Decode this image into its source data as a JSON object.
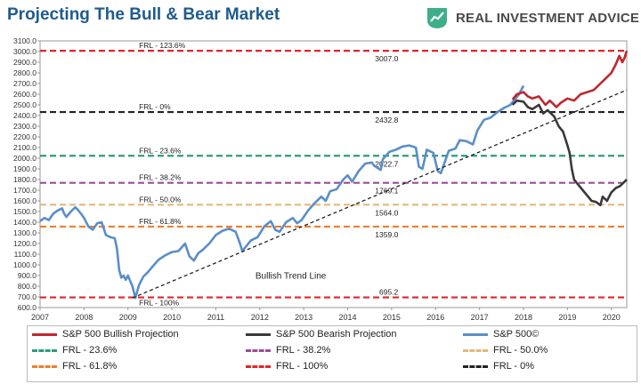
{
  "title": "Projecting The Bull & Bear Market",
  "brand": {
    "name": "REAL INVESTMENT ADVICE",
    "logo_icon": "bull-chart-logo-icon",
    "logo_color": "#3fae8c"
  },
  "chart_data": {
    "type": "line",
    "xlim": [
      2007.0,
      2020.35
    ],
    "ylim": [
      600,
      3100
    ],
    "x_ticks": [
      2007,
      2008,
      2009,
      2010,
      2011,
      2012,
      2013,
      2014,
      2015,
      2016,
      2017,
      2018,
      2019,
      2020
    ],
    "y_ticks": [
      "3100.0",
      "3000.0",
      "2900.0",
      "2800.0",
      "2700.0",
      "2600.0",
      "2500.0",
      "2400.0",
      "2300.0",
      "2200.0",
      "2100.0",
      "2000.0",
      "1900.0",
      "1800.0",
      "1700.0",
      "1600.0",
      "1500.0",
      "1400.0",
      "1300.0",
      "1200.0",
      "1100.0",
      "1000.0",
      "900.0",
      "800.0",
      "700.0",
      "600.0"
    ],
    "series": [
      {
        "name": "S&P 500©",
        "color": "#5b8ec9",
        "style": "solid",
        "points": [
          [
            2007.0,
            1410
          ],
          [
            2007.1,
            1440
          ],
          [
            2007.2,
            1420
          ],
          [
            2007.3,
            1480
          ],
          [
            2007.4,
            1510
          ],
          [
            2007.5,
            1530
          ],
          [
            2007.55,
            1480
          ],
          [
            2007.6,
            1450
          ],
          [
            2007.7,
            1500
          ],
          [
            2007.8,
            1540
          ],
          [
            2007.85,
            1520
          ],
          [
            2007.95,
            1470
          ],
          [
            2008.0,
            1440
          ],
          [
            2008.1,
            1360
          ],
          [
            2008.2,
            1330
          ],
          [
            2008.3,
            1390
          ],
          [
            2008.4,
            1400
          ],
          [
            2008.5,
            1280
          ],
          [
            2008.6,
            1260
          ],
          [
            2008.7,
            1250
          ],
          [
            2008.75,
            1150
          ],
          [
            2008.8,
            950
          ],
          [
            2008.85,
            880
          ],
          [
            2008.9,
            900
          ],
          [
            2008.95,
            860
          ],
          [
            2009.0,
            900
          ],
          [
            2009.1,
            800
          ],
          [
            2009.17,
            690
          ],
          [
            2009.25,
            810
          ],
          [
            2009.35,
            890
          ],
          [
            2009.45,
            930
          ],
          [
            2009.55,
            980
          ],
          [
            2009.7,
            1050
          ],
          [
            2009.85,
            1090
          ],
          [
            2010.0,
            1120
          ],
          [
            2010.15,
            1130
          ],
          [
            2010.3,
            1200
          ],
          [
            2010.4,
            1080
          ],
          [
            2010.5,
            1040
          ],
          [
            2010.6,
            1110
          ],
          [
            2010.7,
            1140
          ],
          [
            2010.85,
            1200
          ],
          [
            2011.0,
            1280
          ],
          [
            2011.15,
            1320
          ],
          [
            2011.3,
            1340
          ],
          [
            2011.45,
            1310
          ],
          [
            2011.55,
            1200
          ],
          [
            2011.6,
            1130
          ],
          [
            2011.7,
            1180
          ],
          [
            2011.8,
            1230
          ],
          [
            2011.95,
            1260
          ],
          [
            2012.1,
            1360
          ],
          [
            2012.25,
            1410
          ],
          [
            2012.35,
            1330
          ],
          [
            2012.45,
            1310
          ],
          [
            2012.6,
            1400
          ],
          [
            2012.75,
            1440
          ],
          [
            2012.85,
            1390
          ],
          [
            2012.95,
            1420
          ],
          [
            2013.1,
            1510
          ],
          [
            2013.25,
            1580
          ],
          [
            2013.4,
            1640
          ],
          [
            2013.5,
            1600
          ],
          [
            2013.6,
            1690
          ],
          [
            2013.75,
            1710
          ],
          [
            2013.9,
            1800
          ],
          [
            2014.0,
            1840
          ],
          [
            2014.1,
            1780
          ],
          [
            2014.25,
            1880
          ],
          [
            2014.4,
            1950
          ],
          [
            2014.55,
            1960
          ],
          [
            2014.6,
            1930
          ],
          [
            2014.75,
            1890
          ],
          [
            2014.8,
            1990
          ],
          [
            2014.95,
            2060
          ],
          [
            2015.1,
            2080
          ],
          [
            2015.25,
            2110
          ],
          [
            2015.4,
            2120
          ],
          [
            2015.55,
            2100
          ],
          [
            2015.62,
            1920
          ],
          [
            2015.7,
            1900
          ],
          [
            2015.8,
            2080
          ],
          [
            2015.95,
            2050
          ],
          [
            2016.05,
            1880
          ],
          [
            2016.12,
            1860
          ],
          [
            2016.3,
            2070
          ],
          [
            2016.45,
            2090
          ],
          [
            2016.55,
            2170
          ],
          [
            2016.7,
            2160
          ],
          [
            2016.85,
            2130
          ],
          [
            2016.95,
            2260
          ],
          [
            2017.1,
            2360
          ],
          [
            2017.25,
            2380
          ],
          [
            2017.4,
            2430
          ],
          [
            2017.55,
            2470
          ],
          [
            2017.7,
            2500
          ],
          [
            2017.8,
            2550
          ],
          [
            2017.9,
            2600
          ],
          [
            2018.0,
            2680
          ]
        ]
      },
      {
        "name": "S&P 500 Bullish Projection",
        "color": "#c0272d",
        "style": "solid",
        "points": [
          [
            2017.75,
            2550
          ],
          [
            2017.85,
            2600
          ],
          [
            2018.0,
            2620
          ],
          [
            2018.1,
            2580
          ],
          [
            2018.2,
            2560
          ],
          [
            2018.35,
            2580
          ],
          [
            2018.5,
            2500
          ],
          [
            2018.6,
            2540
          ],
          [
            2018.75,
            2480
          ],
          [
            2018.85,
            2520
          ],
          [
            2019.0,
            2560
          ],
          [
            2019.15,
            2540
          ],
          [
            2019.3,
            2600
          ],
          [
            2019.45,
            2620
          ],
          [
            2019.6,
            2640
          ],
          [
            2019.75,
            2700
          ],
          [
            2019.9,
            2760
          ],
          [
            2020.0,
            2800
          ],
          [
            2020.1,
            2880
          ],
          [
            2020.18,
            2960
          ],
          [
            2020.25,
            2900
          ],
          [
            2020.3,
            2940
          ],
          [
            2020.35,
            3007
          ]
        ]
      },
      {
        "name": "S&P 500 Bearish Projection",
        "color": "#3a3a3a",
        "style": "solid",
        "points": [
          [
            2017.75,
            2500
          ],
          [
            2017.85,
            2540
          ],
          [
            2018.0,
            2530
          ],
          [
            2018.1,
            2480
          ],
          [
            2018.2,
            2460
          ],
          [
            2018.35,
            2500
          ],
          [
            2018.45,
            2420
          ],
          [
            2018.55,
            2450
          ],
          [
            2018.7,
            2390
          ],
          [
            2018.8,
            2300
          ],
          [
            2018.9,
            2250
          ],
          [
            2019.0,
            2120
          ],
          [
            2019.05,
            2050
          ],
          [
            2019.1,
            1900
          ],
          [
            2019.15,
            1800
          ],
          [
            2019.25,
            1750
          ],
          [
            2019.35,
            1700
          ],
          [
            2019.45,
            1650
          ],
          [
            2019.55,
            1600
          ],
          [
            2019.65,
            1590
          ],
          [
            2019.75,
            1560
          ],
          [
            2019.8,
            1640
          ],
          [
            2019.9,
            1600
          ],
          [
            2020.0,
            1680
          ],
          [
            2020.1,
            1720
          ],
          [
            2020.2,
            1740
          ],
          [
            2020.3,
            1780
          ],
          [
            2020.35,
            1800
          ]
        ]
      },
      {
        "name": "Bullish Trend Line",
        "color": "#222222",
        "style": "dashed",
        "points": [
          [
            2009.1,
            690
          ],
          [
            2020.35,
            2640
          ]
        ]
      }
    ],
    "levels": [
      {
        "name": "FRL - 123.6%",
        "value": 3007.0,
        "value_label": "3007.0",
        "color": "#e0262b"
      },
      {
        "name": "FRL - 0%",
        "value": 2432.8,
        "value_label": "2432.8",
        "color": "#222222"
      },
      {
        "name": "FRL - 23.6%",
        "value": 2022.7,
        "value_label": "2022.7",
        "color": "#2e9b7e"
      },
      {
        "name": "FRL - 38.2%",
        "value": 1769.1,
        "value_label": "1769.1",
        "color": "#9c4b9a"
      },
      {
        "name": "FRL - 50.0%",
        "value": 1564.0,
        "value_label": "1564.0",
        "color": "#e4b77c"
      },
      {
        "name": "FRL - 61.8%",
        "value": 1359.0,
        "value_label": "1359.0",
        "color": "#ee7f2d"
      },
      {
        "name": "FRL - 100%",
        "value": 695.2,
        "value_label": "695.2",
        "color": "#e0262b"
      }
    ],
    "annotations": [
      {
        "text": "Bullish Trend Line",
        "x": 2011.9,
        "y": 870
      }
    ],
    "legend": {
      "placement": "bottom",
      "entries": [
        {
          "label": "S&P 500 Bullish Projection",
          "color": "#c0272d",
          "style": "solid"
        },
        {
          "label": "S&P 500 Bearish Projection",
          "color": "#3a3a3a",
          "style": "solid"
        },
        {
          "label": "S&P 500©",
          "color": "#5b8ec9",
          "style": "solid"
        },
        {
          "label": "FRL - 23.6%",
          "color": "#2e9b7e",
          "style": "dashed"
        },
        {
          "label": "FRL - 38.2%",
          "color": "#9c4b9a",
          "style": "dashed"
        },
        {
          "label": "FRL - 50.0%",
          "color": "#e4b77c",
          "style": "dashed"
        },
        {
          "label": "FRL - 61.8%",
          "color": "#ee7f2d",
          "style": "dashed"
        },
        {
          "label": "FRL - 100%",
          "color": "#e0262b",
          "style": "dashed"
        },
        {
          "label": "FRL - 0%",
          "color": "#222222",
          "style": "dashed"
        }
      ]
    },
    "grid": false
  }
}
